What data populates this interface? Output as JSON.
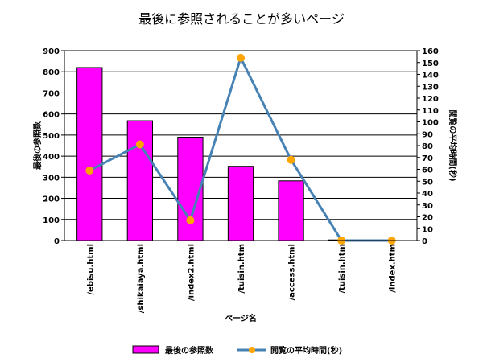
{
  "chart_data": {
    "type": "bar",
    "title": "最後に参照されることが多いページ",
    "xlabel": "ページ名",
    "ylabel_left": "最後の参照数",
    "ylabel_right": "閲覧の平均時間(秒)",
    "categories": [
      "/ebisu.html",
      "/shikaiaya.html",
      "/index2.html",
      "/tuisin.htm",
      "/access.html",
      "/tuisin.htm",
      "/index.htm"
    ],
    "series": [
      {
        "name": "最後の参照数",
        "kind": "bar",
        "axis": "left",
        "color": "#ff00ff",
        "values": [
          820,
          568,
          490,
          352,
          283,
          3,
          0
        ]
      },
      {
        "name": "閲覧の平均時間(秒)",
        "kind": "line",
        "axis": "right",
        "color": "#4682b4",
        "marker_color": "#ffa500",
        "values": [
          59,
          81,
          17,
          154,
          68,
          0,
          0
        ]
      }
    ],
    "ylim_left": [
      0,
      900
    ],
    "yticks_left": [
      0,
      100,
      200,
      300,
      400,
      500,
      600,
      700,
      800,
      900
    ],
    "ylim_right": [
      0,
      160
    ],
    "yticks_right": [
      0,
      10,
      20,
      30,
      40,
      50,
      60,
      70,
      80,
      90,
      100,
      110,
      120,
      130,
      140,
      150,
      160
    ],
    "grid": true,
    "legend_position": "bottom"
  }
}
